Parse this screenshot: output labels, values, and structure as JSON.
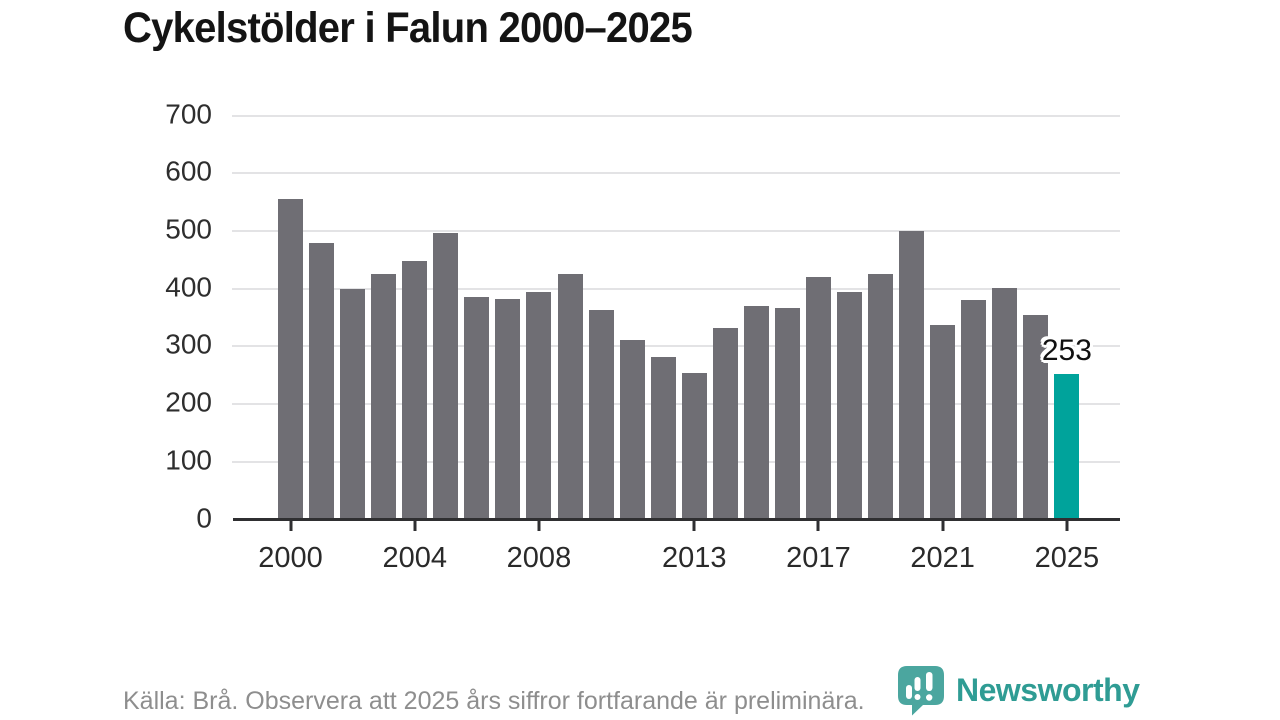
{
  "title": "Cykelstölder i Falun 2000–2025",
  "footer": {
    "source_note": "Källa: Brå. Observera att 2025 års siffror fortfarande är preliminära.",
    "brand_name": "Newsworthy",
    "brand_icon": "newsworthy-pin-barchart-icon"
  },
  "colors": {
    "bar": "#6f6e74",
    "highlight_bar": "#00a39b",
    "gridline": "#e3e3e5",
    "axis": "#2f2f31",
    "tick_label": "#2a2a2a",
    "title_text": "#141414",
    "footer_text": "#8e8e8e",
    "brand_text": "#2f9c94",
    "badge_fill": "#4ba69f",
    "annotation_text": "#111111",
    "annotation_halo": "#ffffff"
  },
  "chart_data": {
    "type": "bar",
    "title": "Cykelstölder i Falun 2000–2025",
    "x": [
      2000,
      2001,
      2002,
      2003,
      2004,
      2005,
      2006,
      2007,
      2008,
      2009,
      2010,
      2011,
      2012,
      2013,
      2014,
      2015,
      2016,
      2017,
      2018,
      2019,
      2020,
      2021,
      2022,
      2023,
      2024,
      2025
    ],
    "values": [
      555,
      480,
      400,
      426,
      448,
      496,
      386,
      383,
      394,
      426,
      364,
      311,
      282,
      254,
      332,
      370,
      367,
      421,
      394,
      426,
      500,
      337,
      380,
      401,
      355,
      253
    ],
    "highlight_x": 2025,
    "annotation": {
      "x": 2025,
      "label": "253"
    },
    "xlabel": "",
    "ylabel": "",
    "ylim": [
      0,
      700
    ],
    "yticks": [
      0,
      100,
      200,
      300,
      400,
      500,
      600,
      700
    ],
    "xticks": [
      2000,
      2004,
      2008,
      2013,
      2017,
      2021,
      2025
    ],
    "grid": "horizontal",
    "legend": "none"
  }
}
